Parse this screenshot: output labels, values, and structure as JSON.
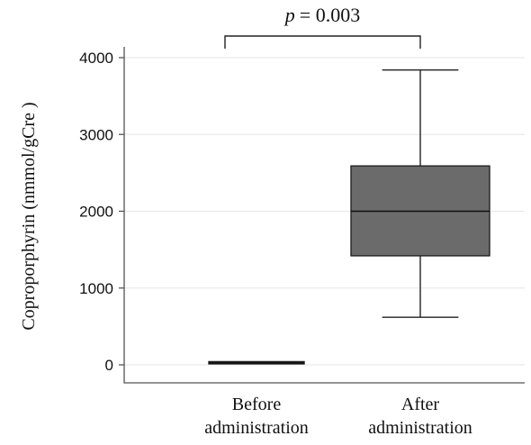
{
  "chart_data": {
    "type": "box",
    "ylabel": "Coproporphyrin (nmmol/gCre )",
    "ylim": [
      -150,
      4150
    ],
    "yticks": [
      "0",
      "1000",
      "2000",
      "3000",
      "4000"
    ],
    "ytick_values": [
      0,
      1000,
      2000,
      3000,
      4000
    ],
    "grid": true,
    "categories": [
      {
        "line1": "Before",
        "line2": "administration"
      },
      {
        "line1": "After",
        "line2": "administration"
      }
    ],
    "boxes": [
      {
        "whisker_low": 20,
        "q1": 20,
        "median": 25,
        "q3": 30,
        "whisker_high": 30,
        "color": "#1a1a1a"
      },
      {
        "whisker_low": 620,
        "q1": 1420,
        "median": 2000,
        "q3": 2590,
        "whisker_high": 3840,
        "color": "#6b6b6b"
      }
    ],
    "annotation": {
      "p_symbol": "p",
      "text": "= 0.003",
      "between": [
        0,
        1
      ]
    }
  }
}
